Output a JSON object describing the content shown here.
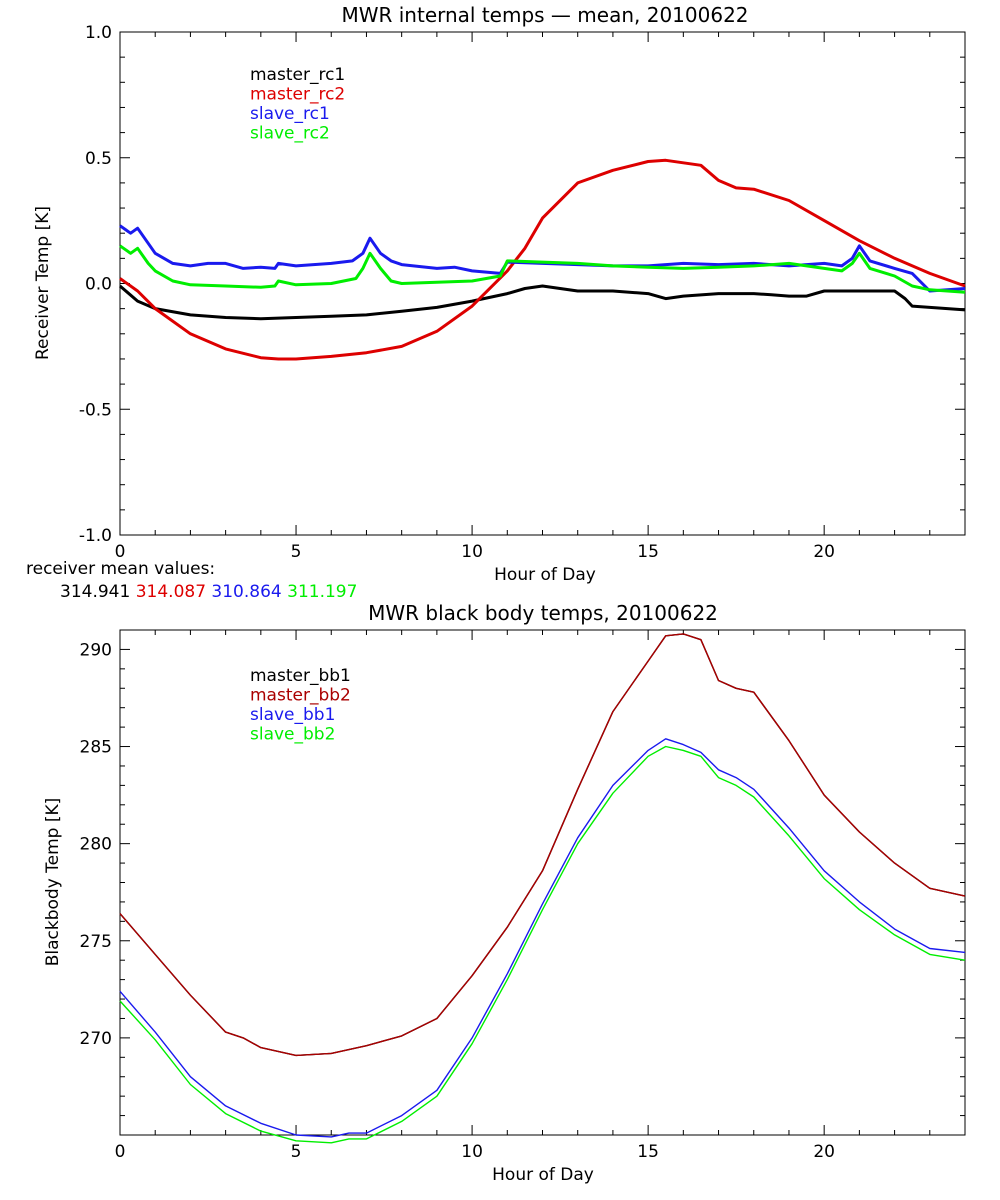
{
  "colors": {
    "black": "#000000",
    "red": "#dd0000",
    "blue": "#1a1aee",
    "green": "#00ee00",
    "darkred": "#aa0000"
  },
  "chart_data": [
    {
      "type": "line",
      "title": "MWR internal temps — mean, 20100622",
      "xlabel": "Hour of Day",
      "ylabel": "Receiver Temp [K]",
      "xlim": [
        0,
        24
      ],
      "ylim": [
        -1.0,
        1.0
      ],
      "xticks": [
        0,
        5,
        10,
        15,
        20
      ],
      "xtick_labels": [
        "0",
        "5",
        "10",
        "15",
        "20"
      ],
      "yticks": [
        -1.0,
        -0.5,
        0.0,
        0.5,
        1.0
      ],
      "ytick_labels": [
        "-1.0",
        "-0.5",
        "0.0",
        "0.5",
        "1.0"
      ],
      "grid": false,
      "legend_position": "top-left",
      "series": [
        {
          "name": "master_rc1",
          "color": "#000000",
          "x": [
            0,
            0.5,
            1,
            2,
            3,
            4,
            5,
            6,
            7,
            8,
            9,
            10,
            11,
            11.5,
            12,
            12.5,
            13,
            14,
            15,
            15.5,
            16,
            17,
            18,
            18.5,
            19,
            19.5,
            20,
            21,
            21.5,
            22,
            22.3,
            22.5,
            23,
            24
          ],
          "y": [
            -0.01,
            -0.07,
            -0.1,
            -0.125,
            -0.135,
            -0.14,
            -0.135,
            -0.13,
            -0.125,
            -0.11,
            -0.095,
            -0.07,
            -0.04,
            -0.02,
            -0.01,
            -0.02,
            -0.03,
            -0.03,
            -0.04,
            -0.06,
            -0.05,
            -0.04,
            -0.04,
            -0.045,
            -0.05,
            -0.05,
            -0.03,
            -0.03,
            -0.03,
            -0.03,
            -0.06,
            -0.09,
            -0.095,
            -0.105
          ]
        },
        {
          "name": "master_rc2",
          "color": "#dd0000",
          "x": [
            0,
            0.5,
            1,
            2,
            3,
            4,
            4.5,
            5,
            6,
            7,
            8,
            9,
            10,
            11,
            11.5,
            12,
            13,
            14,
            15,
            15.5,
            16,
            16.5,
            17,
            17.5,
            18,
            19,
            20,
            21,
            22,
            23,
            24
          ],
          "y": [
            0.02,
            -0.03,
            -0.1,
            -0.2,
            -0.26,
            -0.295,
            -0.3,
            -0.3,
            -0.29,
            -0.275,
            -0.25,
            -0.19,
            -0.09,
            0.05,
            0.14,
            0.26,
            0.4,
            0.45,
            0.485,
            0.49,
            0.48,
            0.47,
            0.41,
            0.38,
            0.375,
            0.33,
            0.25,
            0.17,
            0.1,
            0.04,
            -0.01
          ]
        },
        {
          "name": "slave_rc1",
          "color": "#1a1aee",
          "x": [
            0,
            0.3,
            0.5,
            0.8,
            1,
            1.5,
            2,
            2.5,
            3,
            3.5,
            4,
            4.4,
            4.5,
            5,
            6,
            6.6,
            6.9,
            7.1,
            7.4,
            7.7,
            8,
            9,
            9.5,
            10,
            10.8,
            11,
            12,
            13,
            14,
            15,
            16,
            17,
            18,
            19,
            20,
            20.5,
            20.8,
            21,
            21.3,
            22,
            22.5,
            23,
            24
          ],
          "y": [
            0.23,
            0.2,
            0.22,
            0.16,
            0.12,
            0.08,
            0.07,
            0.08,
            0.08,
            0.06,
            0.065,
            0.06,
            0.08,
            0.07,
            0.08,
            0.09,
            0.12,
            0.18,
            0.12,
            0.09,
            0.075,
            0.06,
            0.065,
            0.05,
            0.04,
            0.085,
            0.08,
            0.075,
            0.07,
            0.07,
            0.08,
            0.075,
            0.08,
            0.07,
            0.08,
            0.07,
            0.1,
            0.15,
            0.09,
            0.06,
            0.04,
            -0.03,
            -0.02
          ]
        },
        {
          "name": "slave_rc2",
          "color": "#00ee00",
          "x": [
            0,
            0.3,
            0.5,
            0.8,
            1,
            1.5,
            2,
            3,
            4,
            4.4,
            4.5,
            5,
            6,
            6.7,
            6.9,
            7.1,
            7.4,
            7.7,
            8,
            9,
            10,
            10.8,
            11,
            12,
            13,
            14,
            15,
            16,
            17,
            18,
            19,
            20,
            20.5,
            20.8,
            21,
            21.3,
            22,
            22.5,
            23,
            24
          ],
          "y": [
            0.15,
            0.12,
            0.14,
            0.08,
            0.05,
            0.01,
            -0.005,
            -0.01,
            -0.015,
            -0.01,
            0.01,
            -0.005,
            0.0,
            0.02,
            0.06,
            0.12,
            0.06,
            0.01,
            0.0,
            0.005,
            0.01,
            0.03,
            0.09,
            0.085,
            0.08,
            0.07,
            0.065,
            0.06,
            0.065,
            0.07,
            0.08,
            0.06,
            0.05,
            0.08,
            0.12,
            0.06,
            0.03,
            -0.01,
            -0.025,
            -0.035
          ]
        }
      ]
    },
    {
      "type": "line",
      "title": "MWR black body temps, 20100622",
      "xlabel": "Hour of Day",
      "ylabel": "Blackbody Temp [K]",
      "xlim": [
        0,
        24
      ],
      "ylim": [
        265,
        291
      ],
      "xticks": [
        0,
        5,
        10,
        15,
        20
      ],
      "xtick_labels": [
        "0",
        "5",
        "10",
        "15",
        "20"
      ],
      "yticks": [
        270,
        275,
        280,
        285,
        290
      ],
      "ytick_labels": [
        "270",
        "275",
        "280",
        "285",
        "290"
      ],
      "grid": false,
      "legend_position": "top-left",
      "series": [
        {
          "name": "master_bb1",
          "color": "#000000",
          "x": [
            0,
            1,
            2,
            3,
            3.5,
            4,
            5,
            6,
            7,
            8,
            9,
            10,
            11,
            12,
            13,
            14,
            15,
            15.5,
            16,
            16.5,
            17,
            17.5,
            18,
            19,
            20,
            21,
            22,
            23,
            24
          ],
          "y": [
            276.4,
            274.3,
            272.2,
            270.3,
            270.0,
            269.5,
            269.1,
            269.2,
            269.6,
            270.1,
            271.0,
            273.2,
            275.7,
            278.6,
            282.8,
            286.8,
            289.4,
            290.7,
            290.8,
            290.5,
            288.4,
            288.0,
            287.8,
            285.3,
            282.5,
            280.6,
            279.0,
            277.7,
            277.3
          ]
        },
        {
          "name": "master_bb2",
          "color": "#aa0000",
          "x": [
            0,
            1,
            2,
            3,
            3.5,
            4,
            5,
            6,
            7,
            8,
            9,
            10,
            11,
            12,
            13,
            14,
            15,
            15.5,
            16,
            16.5,
            17,
            17.5,
            18,
            19,
            20,
            21,
            22,
            23,
            24
          ],
          "y": [
            276.4,
            274.3,
            272.2,
            270.3,
            270.0,
            269.5,
            269.1,
            269.2,
            269.6,
            270.1,
            271.0,
            273.2,
            275.7,
            278.6,
            282.8,
            286.8,
            289.4,
            290.7,
            290.8,
            290.5,
            288.4,
            288.0,
            287.8,
            285.3,
            282.5,
            280.6,
            279.0,
            277.7,
            277.3
          ]
        },
        {
          "name": "slave_bb1",
          "color": "#1a1aee",
          "x": [
            0,
            1,
            2,
            3,
            4,
            5,
            6,
            6.5,
            7,
            8,
            9,
            10,
            11,
            12,
            13,
            14,
            15,
            15.5,
            16,
            16.5,
            17,
            17.5,
            18,
            19,
            20,
            21,
            22,
            23,
            24
          ],
          "y": [
            272.4,
            270.3,
            268.0,
            266.5,
            265.6,
            265.0,
            264.9,
            265.1,
            265.1,
            266.0,
            267.3,
            270.0,
            273.3,
            276.9,
            280.3,
            283.0,
            284.8,
            285.4,
            285.1,
            284.7,
            283.8,
            283.4,
            282.8,
            280.8,
            278.6,
            277.0,
            275.6,
            274.6,
            274.4
          ]
        },
        {
          "name": "slave_bb2",
          "color": "#00ee00",
          "x": [
            0,
            1,
            2,
            3,
            4,
            5,
            6,
            6.5,
            7,
            8,
            9,
            10,
            11,
            12,
            13,
            14,
            15,
            15.5,
            16,
            16.5,
            17,
            17.5,
            18,
            19,
            20,
            21,
            22,
            23,
            24
          ],
          "y": [
            271.9,
            269.9,
            267.6,
            266.1,
            265.2,
            264.7,
            264.6,
            264.8,
            264.8,
            265.7,
            267.0,
            269.7,
            273.0,
            276.6,
            280.0,
            282.6,
            284.5,
            285.0,
            284.8,
            284.5,
            283.4,
            283.0,
            282.4,
            280.4,
            278.2,
            276.6,
            275.3,
            274.3,
            274.0
          ]
        }
      ]
    }
  ],
  "receiver_means": {
    "label": "receiver mean values:",
    "values": [
      {
        "text": "314.941",
        "color": "#000000"
      },
      {
        "text": "314.087",
        "color": "#dd0000"
      },
      {
        "text": "310.864",
        "color": "#1a1aee"
      },
      {
        "text": "311.197",
        "color": "#00ee00"
      }
    ]
  }
}
